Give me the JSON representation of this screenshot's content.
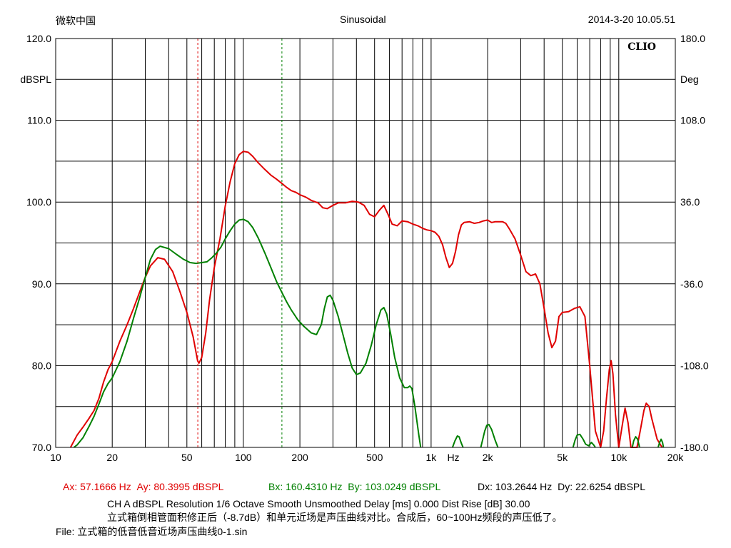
{
  "header": {
    "left": "微软中国",
    "center": "Sinusoidal",
    "right": "2014-3-20 10.05.51"
  },
  "badge": "CLIO",
  "chart_data": {
    "type": "line",
    "x_scale": "log",
    "xlim": [
      10,
      20000
    ],
    "ylim": [
      70,
      120
    ],
    "y2lim": [
      -180,
      180
    ],
    "ylabel": "dBSPL",
    "y2label": "Deg",
    "xunit": "Hz",
    "x_ticks": [
      {
        "v": 10,
        "label": "10"
      },
      {
        "v": 20,
        "label": "20"
      },
      {
        "v": 50,
        "label": "50"
      },
      {
        "v": 100,
        "label": "100"
      },
      {
        "v": 200,
        "label": "200"
      },
      {
        "v": 500,
        "label": "500"
      },
      {
        "v": 1000,
        "label": "1k"
      },
      {
        "v": 2000,
        "label": "2k"
      },
      {
        "v": 5000,
        "label": "5k"
      },
      {
        "v": 10000,
        "label": "10k"
      },
      {
        "v": 20000,
        "label": "20k"
      }
    ],
    "y_ticks": [
      "70.0",
      "80.0",
      "90.0",
      "100.0",
      "110.0",
      "120.0"
    ],
    "y2_ticks": [
      "-180.0",
      "-108.0",
      "-36.0",
      "36.0",
      "108.0",
      "180.0"
    ],
    "grid": true,
    "series": [
      {
        "color": "#e00000",
        "points": [
          [
            12,
            70
          ],
          [
            13,
            71.5
          ],
          [
            14,
            72.5
          ],
          [
            15,
            73.5
          ],
          [
            16,
            74.5
          ],
          [
            17,
            76
          ],
          [
            18,
            78
          ],
          [
            19,
            79.5
          ],
          [
            20,
            80.5
          ],
          [
            22,
            83
          ],
          [
            24,
            85
          ],
          [
            26,
            87
          ],
          [
            28,
            89
          ],
          [
            30,
            90.8
          ],
          [
            32,
            92.2
          ],
          [
            35,
            93.2
          ],
          [
            38,
            93
          ],
          [
            42,
            91.5
          ],
          [
            46,
            89
          ],
          [
            50,
            86.5
          ],
          [
            54,
            83.5
          ],
          [
            57,
            80.6
          ],
          [
            58,
            80.3
          ],
          [
            60,
            81
          ],
          [
            63,
            84
          ],
          [
            66,
            88
          ],
          [
            70,
            92
          ],
          [
            75,
            95.5
          ],
          [
            80,
            99.5
          ],
          [
            85,
            102.5
          ],
          [
            90,
            104.7
          ],
          [
            95,
            105.8
          ],
          [
            100,
            106.2
          ],
          [
            106,
            106.1
          ],
          [
            112,
            105.6
          ],
          [
            120,
            104.8
          ],
          [
            130,
            104
          ],
          [
            140,
            103.3
          ],
          [
            150,
            102.8
          ],
          [
            160,
            102.3
          ],
          [
            170,
            101.8
          ],
          [
            180,
            101.4
          ],
          [
            190,
            101.2
          ],
          [
            200,
            100.9
          ],
          [
            215,
            100.6
          ],
          [
            230,
            100.2
          ],
          [
            250,
            99.9
          ],
          [
            265,
            99.3
          ],
          [
            280,
            99.2
          ],
          [
            300,
            99.6
          ],
          [
            320,
            99.9
          ],
          [
            350,
            99.9
          ],
          [
            380,
            100.1
          ],
          [
            410,
            100
          ],
          [
            440,
            99.6
          ],
          [
            470,
            98.5
          ],
          [
            500,
            98.2
          ],
          [
            530,
            99
          ],
          [
            560,
            99.6
          ],
          [
            590,
            98.5
          ],
          [
            620,
            97.3
          ],
          [
            660,
            97.1
          ],
          [
            700,
            97.7
          ],
          [
            750,
            97.6
          ],
          [
            800,
            97.3
          ],
          [
            850,
            97.1
          ],
          [
            900,
            96.8
          ],
          [
            950,
            96.6
          ],
          [
            1000,
            96.5
          ],
          [
            1050,
            96.3
          ],
          [
            1100,
            95.8
          ],
          [
            1150,
            94.8
          ],
          [
            1200,
            93.2
          ],
          [
            1250,
            92
          ],
          [
            1300,
            92.5
          ],
          [
            1350,
            94
          ],
          [
            1400,
            96
          ],
          [
            1450,
            97.2
          ],
          [
            1500,
            97.5
          ],
          [
            1600,
            97.6
          ],
          [
            1700,
            97.4
          ],
          [
            1800,
            97.5
          ],
          [
            1900,
            97.7
          ],
          [
            2000,
            97.8
          ],
          [
            2100,
            97.5
          ],
          [
            2200,
            97.6
          ],
          [
            2400,
            97.6
          ],
          [
            2500,
            97.4
          ],
          [
            2600,
            96.8
          ],
          [
            2800,
            95.5
          ],
          [
            3000,
            93.5
          ],
          [
            3200,
            91.5
          ],
          [
            3400,
            91
          ],
          [
            3600,
            91.2
          ],
          [
            3800,
            90
          ],
          [
            4000,
            87
          ],
          [
            4200,
            84
          ],
          [
            4400,
            82.2
          ],
          [
            4600,
            83
          ],
          [
            4800,
            86
          ],
          [
            5000,
            86.5
          ],
          [
            5400,
            86.6
          ],
          [
            5800,
            87
          ],
          [
            6200,
            87.2
          ],
          [
            6600,
            86
          ],
          [
            7000,
            80
          ],
          [
            7500,
            72
          ],
          [
            8000,
            70
          ],
          [
            8300,
            72
          ],
          [
            8600,
            76
          ],
          [
            8900,
            79.5
          ],
          [
            9100,
            80.6
          ],
          [
            9300,
            79
          ],
          [
            9600,
            74
          ],
          [
            10000,
            70
          ],
          [
            10400,
            72.5
          ],
          [
            10800,
            74.8
          ],
          [
            11200,
            73
          ],
          [
            11600,
            70
          ],
          [
            12500,
            70
          ],
          [
            13000,
            72
          ],
          [
            13600,
            74.5
          ],
          [
            14000,
            75.4
          ],
          [
            14500,
            75
          ],
          [
            15000,
            73.5
          ],
          [
            16000,
            71
          ],
          [
            17000,
            70
          ]
        ]
      },
      {
        "color": "#008000",
        "points": [
          [
            12.5,
            70
          ],
          [
            13,
            70.3
          ],
          [
            14,
            71.2
          ],
          [
            15,
            72.5
          ],
          [
            16,
            73.8
          ],
          [
            17,
            75.3
          ],
          [
            18,
            76.8
          ],
          [
            19,
            77.8
          ],
          [
            20,
            78.5
          ],
          [
            22,
            80.5
          ],
          [
            24,
            83
          ],
          [
            26,
            85.8
          ],
          [
            28,
            88.3
          ],
          [
            30,
            90.8
          ],
          [
            32,
            93
          ],
          [
            34,
            94.2
          ],
          [
            36,
            94.6
          ],
          [
            40,
            94.3
          ],
          [
            44,
            93.6
          ],
          [
            48,
            93
          ],
          [
            52,
            92.6
          ],
          [
            56,
            92.5
          ],
          [
            60,
            92.6
          ],
          [
            64,
            92.7
          ],
          [
            68,
            93.2
          ],
          [
            72,
            93.8
          ],
          [
            76,
            94.5
          ],
          [
            80,
            95.5
          ],
          [
            85,
            96.5
          ],
          [
            90,
            97.3
          ],
          [
            95,
            97.8
          ],
          [
            100,
            97.9
          ],
          [
            106,
            97.6
          ],
          [
            112,
            96.9
          ],
          [
            120,
            95.6
          ],
          [
            130,
            93.8
          ],
          [
            140,
            92
          ],
          [
            150,
            90.3
          ],
          [
            160,
            89
          ],
          [
            170,
            87.8
          ],
          [
            180,
            86.8
          ],
          [
            195,
            85.6
          ],
          [
            210,
            84.8
          ],
          [
            230,
            84
          ],
          [
            245,
            83.8
          ],
          [
            260,
            85
          ],
          [
            270,
            87
          ],
          [
            280,
            88.4
          ],
          [
            290,
            88.6
          ],
          [
            300,
            88
          ],
          [
            320,
            86
          ],
          [
            340,
            83.7
          ],
          [
            360,
            81.5
          ],
          [
            380,
            79.7
          ],
          [
            400,
            78.9
          ],
          [
            420,
            79.1
          ],
          [
            450,
            80.3
          ],
          [
            480,
            82.5
          ],
          [
            510,
            85
          ],
          [
            540,
            86.8
          ],
          [
            560,
            87.1
          ],
          [
            580,
            86.3
          ],
          [
            610,
            83.8
          ],
          [
            640,
            81
          ],
          [
            680,
            78.5
          ],
          [
            720,
            77.3
          ],
          [
            750,
            77.3
          ],
          [
            770,
            77.5
          ],
          [
            790,
            77.2
          ],
          [
            820,
            75
          ],
          [
            860,
            71.5
          ],
          [
            880,
            70
          ]
        ]
      },
      {
        "color": "#008000",
        "points": [
          [
            1300,
            70
          ],
          [
            1340,
            70.8
          ],
          [
            1380,
            71.4
          ],
          [
            1410,
            71.3
          ],
          [
            1450,
            70.5
          ],
          [
            1480,
            70
          ]
        ]
      },
      {
        "color": "#008000",
        "points": [
          [
            1840,
            70
          ],
          [
            1880,
            70.9
          ],
          [
            1930,
            72
          ],
          [
            1980,
            72.7
          ],
          [
            2030,
            72.8
          ],
          [
            2100,
            72.2
          ],
          [
            2200,
            70.8
          ],
          [
            2270,
            70
          ]
        ]
      },
      {
        "color": "#008000",
        "points": [
          [
            5700,
            70
          ],
          [
            5850,
            70.9
          ],
          [
            6000,
            71.5
          ],
          [
            6200,
            71.6
          ],
          [
            6450,
            71
          ],
          [
            6650,
            70.4
          ],
          [
            6900,
            70.2
          ],
          [
            7150,
            70.6
          ],
          [
            7350,
            70.3
          ],
          [
            7500,
            70
          ]
        ]
      },
      {
        "color": "#008000",
        "points": [
          [
            11800,
            70
          ],
          [
            12000,
            70.8
          ],
          [
            12300,
            71.3
          ],
          [
            12600,
            71
          ],
          [
            12900,
            70
          ]
        ]
      },
      {
        "color": "#008000",
        "points": [
          [
            16200,
            70
          ],
          [
            16500,
            70.6
          ],
          [
            16800,
            71
          ],
          [
            17100,
            70.6
          ],
          [
            17300,
            70
          ]
        ]
      }
    ],
    "markers": [
      {
        "x": 57.1666,
        "color": "#e00000"
      },
      {
        "x": 160.431,
        "color": "#008000"
      }
    ]
  },
  "cursor": {
    "ax": "Ax: 57.1666 Hz",
    "ay": "Ay: 80.3995 dBSPL",
    "bx": "Bx: 160.4310 Hz",
    "by": "By: 103.0249 dBSPL",
    "dx": "Dx: 103.2644 Hz",
    "dy": "Dy: 22.6254 dBSPL",
    "a_color": "#e00000",
    "b_color": "#008000"
  },
  "info": {
    "line1": "CH A   dBSPL   Resolution 1/6 Octave   Smooth Unsmoothed   Delay [ms] 0.000   Dist Rise [dB] 30.00",
    "line2": "立式箱倒相管面积修正后（-8.7dB）和单元近场是声压曲线对比。合成后，60~100Hz频段的声压低了。",
    "line3": "File: 立式箱的低音低音近场声压曲线0-1.sin"
  }
}
